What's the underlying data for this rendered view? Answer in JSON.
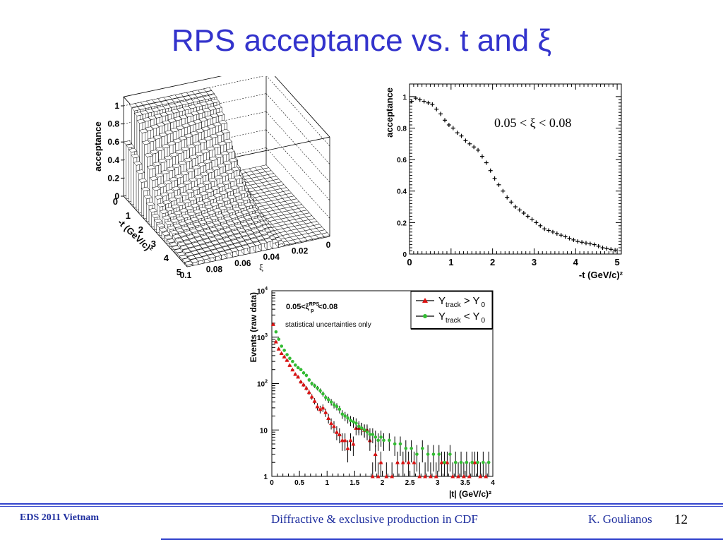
{
  "slide": {
    "title": "RPS acceptance vs. t and ξ",
    "footer": {
      "left": "EDS 2011 Vietnam",
      "center": "Diffractive & exclusive production in CDF",
      "author": "K. Goulianos",
      "page": "12"
    },
    "colors": {
      "title": "#3333cc",
      "footer_rule": "#3344cc",
      "footer_text": "#1f2f9f"
    }
  },
  "chart_data": [
    {
      "type": "bar",
      "subtype": "3d-lego",
      "zlabel": "acceptance",
      "xlabel": "-t (GeV/c)²",
      "ylabel": "ξ",
      "x_ticks": [
        "0",
        "1",
        "2",
        "3",
        "4",
        "5"
      ],
      "y_ticks": [
        "0.1",
        "0.08",
        "0.06",
        "0.04",
        "0.02",
        "0"
      ],
      "z_ticks": [
        "0",
        "0.2",
        "0.4",
        "0.6",
        "0.8",
        "1"
      ],
      "xlim": [
        0,
        5
      ],
      "ylim": [
        0,
        0.1
      ],
      "zlim": [
        0,
        1
      ]
    },
    {
      "type": "scatter",
      "ylabel": "acceptance",
      "xlabel": "-t (GeV/c)²",
      "annotation": "0.05 < ξ < 0.08",
      "xlim": [
        0,
        5.1
      ],
      "ylim": [
        0,
        1.08
      ],
      "x_ticks": [
        "0",
        "1",
        "2",
        "3",
        "4",
        "5"
      ],
      "y_ticks": [
        "0",
        "0.2",
        "0.4",
        "0.6",
        "0.8",
        "1"
      ],
      "x": [
        0.05,
        0.15,
        0.25,
        0.35,
        0.45,
        0.55,
        0.65,
        0.75,
        0.85,
        0.95,
        1.05,
        1.15,
        1.25,
        1.35,
        1.45,
        1.55,
        1.65,
        1.75,
        1.85,
        1.95,
        2.05,
        2.15,
        2.25,
        2.35,
        2.45,
        2.55,
        2.65,
        2.75,
        2.85,
        2.95,
        3.05,
        3.15,
        3.25,
        3.35,
        3.45,
        3.55,
        3.65,
        3.75,
        3.85,
        3.95,
        4.05,
        4.15,
        4.25,
        4.35,
        4.45,
        4.55,
        4.65,
        4.75,
        4.85,
        4.95
      ],
      "y": [
        0.97,
        0.99,
        0.98,
        0.97,
        0.96,
        0.95,
        0.92,
        0.89,
        0.85,
        0.82,
        0.8,
        0.77,
        0.75,
        0.72,
        0.7,
        0.68,
        0.66,
        0.62,
        0.58,
        0.53,
        0.48,
        0.44,
        0.4,
        0.36,
        0.33,
        0.3,
        0.28,
        0.26,
        0.24,
        0.22,
        0.2,
        0.18,
        0.16,
        0.15,
        0.14,
        0.13,
        0.12,
        0.11,
        0.1,
        0.09,
        0.08,
        0.075,
        0.07,
        0.065,
        0.06,
        0.05,
        0.04,
        0.035,
        0.03,
        0.025
      ]
    },
    {
      "type": "scatter",
      "scale_y": "log",
      "ylabel": "Events (raw data)",
      "xlabel": "|t| (GeV/c)²",
      "annotation1": "0.05<ξ",
      "annotation1_sup": "RPS",
      "annotation1_sub": "p",
      "annotation1_end": "<0.08",
      "annotation2": "statistical uncertainties only",
      "xlim": [
        0,
        4
      ],
      "ylim": [
        1,
        10000
      ],
      "x_ticks": [
        "0",
        "0.5",
        "1",
        "1.5",
        "2",
        "2.5",
        "3",
        "3.5",
        "4"
      ],
      "y_ticks": [
        {
          "base": "1",
          "exp": ""
        },
        {
          "base": "10",
          "exp": ""
        },
        {
          "base": "10",
          "exp": "2"
        },
        {
          "base": "10",
          "exp": "3"
        },
        {
          "base": "10",
          "exp": "4"
        }
      ],
      "legend": {
        "position": "top-right",
        "entries": [
          {
            "name_main": "Y",
            "name_sub": "track",
            "name_op": " > Y",
            "name_sub2": "0",
            "color": "#dd1111",
            "marker": "triangle"
          },
          {
            "name_main": "Y",
            "name_sub": "track",
            "name_op": " < Y",
            "name_sub2": "0",
            "color": "#33bb33",
            "marker": "circle"
          }
        ]
      },
      "series": [
        {
          "color": "#dd1111",
          "marker": "triangle",
          "x": [
            0.05,
            0.1,
            0.15,
            0.2,
            0.25,
            0.3,
            0.35,
            0.4,
            0.45,
            0.5,
            0.55,
            0.6,
            0.65,
            0.7,
            0.75,
            0.8,
            0.85,
            0.9,
            0.95,
            1.0,
            1.05,
            1.1,
            1.15,
            1.2,
            1.25,
            1.3,
            1.35,
            1.4,
            1.45,
            1.5,
            1.55,
            1.6,
            1.65,
            1.7,
            1.75,
            1.8,
            1.85,
            1.9,
            1.95,
            2.0,
            2.1,
            2.2,
            2.3,
            2.4,
            2.5,
            2.6,
            2.7,
            2.8,
            2.9,
            3.0,
            3.1,
            3.2,
            3.3,
            3.4,
            3.5,
            3.6,
            3.7,
            3.8,
            3.9
          ],
          "y": [
            1900,
            800,
            560,
            450,
            380,
            320,
            250,
            200,
            160,
            140,
            110,
            95,
            80,
            65,
            52,
            42,
            32,
            28,
            30,
            24,
            18,
            14,
            12,
            9,
            8,
            6,
            6,
            4,
            6,
            5,
            11,
            11,
            11,
            10,
            10,
            6,
            1,
            3,
            1,
            2,
            1,
            1,
            2,
            2,
            2,
            2,
            1,
            1,
            1,
            1,
            2,
            2,
            1,
            1,
            1,
            1,
            2,
            1,
            1
          ]
        },
        {
          "color": "#33bb33",
          "marker": "circle",
          "x": [
            0.05,
            0.1,
            0.15,
            0.2,
            0.25,
            0.3,
            0.35,
            0.4,
            0.45,
            0.5,
            0.55,
            0.6,
            0.65,
            0.7,
            0.75,
            0.8,
            0.85,
            0.9,
            0.95,
            1.0,
            1.05,
            1.1,
            1.15,
            1.2,
            1.25,
            1.3,
            1.35,
            1.4,
            1.45,
            1.5,
            1.55,
            1.6,
            1.65,
            1.7,
            1.75,
            1.8,
            1.85,
            1.9,
            1.95,
            2.0,
            2.1,
            2.2,
            2.3,
            2.4,
            2.5,
            2.6,
            2.7,
            2.8,
            2.9,
            3.0,
            3.1,
            3.2,
            3.3,
            3.4,
            3.5,
            3.6,
            3.7,
            3.8,
            3.9
          ],
          "y": [
            1300,
            900,
            640,
            520,
            420,
            350,
            300,
            250,
            220,
            200,
            170,
            150,
            120,
            100,
            90,
            80,
            70,
            60,
            50,
            45,
            40,
            35,
            32,
            28,
            22,
            20,
            18,
            16,
            15,
            14,
            12,
            11,
            10,
            9,
            8,
            8,
            7,
            6,
            7,
            6,
            6,
            5,
            5,
            4,
            4,
            3,
            4,
            3,
            3,
            3,
            2,
            3,
            2,
            2,
            2,
            2,
            2,
            2,
            2
          ]
        }
      ]
    }
  ]
}
